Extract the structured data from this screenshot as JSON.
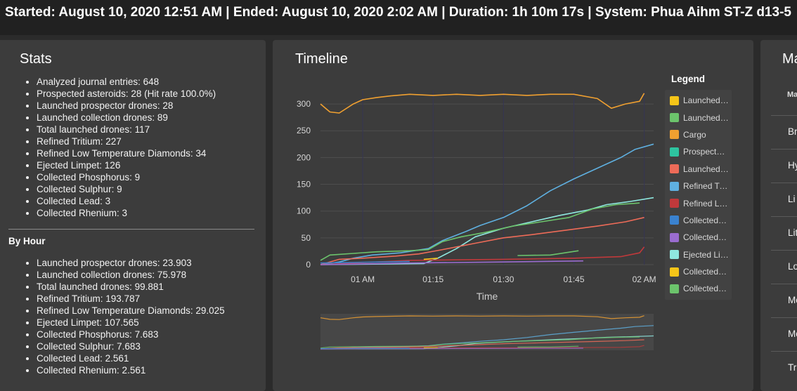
{
  "header": {
    "summary": "Started: August 10, 2020 12:51 AM | Ended: August 10, 2020 2:02 AM | Duration: 1h 10m 17s | System: Phua Aihm ST-Z d13-5"
  },
  "stats": {
    "title": "Stats",
    "items": [
      "Analyzed journal entries: 648",
      "Prospected asteroids: 28 (Hit rate 100.0%)",
      "Launched prospector drones: 28",
      "Launched collection drones: 89",
      "Total launched drones: 117",
      "Refined Tritium: 227",
      "Refined Low Temperature Diamonds: 34",
      "Ejected Limpet: 126",
      "Collected Phosphorus: 9",
      "Collected Sulphur: 9",
      "Collected Lead: 3",
      "Collected Rhenium: 3"
    ],
    "by_hour_title": "By Hour",
    "by_hour_items": [
      "Launched prospector drones: 23.903",
      "Launched collection drones: 75.978",
      "Total launched drones: 99.881",
      "Refined Tritium: 193.787",
      "Refined Low Temperature Diamonds: 29.025",
      "Ejected Limpet: 107.565",
      "Collected Phosphorus: 7.683",
      "Collected Sulphur: 7.683",
      "Collected Lead: 2.561",
      "Collected Rhenium: 2.561"
    ]
  },
  "timeline": {
    "title": "Timeline",
    "legend_title": "Legend",
    "legend": [
      {
        "label": "Launched…",
        "color": "#f5c518"
      },
      {
        "label": "Launched…",
        "color": "#6cc46c"
      },
      {
        "label": "Cargo",
        "color": "#f0a030"
      },
      {
        "label": "Prospect…",
        "color": "#2ec4a0"
      },
      {
        "label": "Launched…",
        "color": "#ee6b58"
      },
      {
        "label": "Refined Tr…",
        "color": "#5fb0e0"
      },
      {
        "label": "Refined L…",
        "color": "#c0393b"
      },
      {
        "label": "Collected…",
        "color": "#3a82d0"
      },
      {
        "label": "Collected…",
        "color": "#9a6cd0"
      },
      {
        "label": "Ejected Li…",
        "color": "#8fe8e0"
      },
      {
        "label": "Collected…",
        "color": "#f5c518"
      },
      {
        "label": "Collected…",
        "color": "#6cc46c"
      }
    ]
  },
  "chart_data": {
    "type": "line",
    "xlabel": "Time",
    "ylabel": "",
    "xlim": [
      "00:51",
      "02:02"
    ],
    "ylim": [
      0,
      325
    ],
    "yticks": [
      0,
      50,
      100,
      150,
      200,
      250,
      300
    ],
    "xticks": [
      {
        "t": "01:00",
        "label": "01 AM"
      },
      {
        "t": "01:15",
        "label": "01:15"
      },
      {
        "t": "01:30",
        "label": "01:30"
      },
      {
        "t": "01:45",
        "label": "01:45"
      },
      {
        "t": "02:00",
        "label": "02 AM"
      }
    ],
    "grid": true,
    "legend_position": "right",
    "series": [
      {
        "color": "#f0a030",
        "points": [
          [
            "00:51",
            300
          ],
          [
            "00:53",
            285
          ],
          [
            "00:55",
            283
          ],
          [
            "00:58",
            300
          ],
          [
            "01:00",
            308
          ],
          [
            "01:03",
            312
          ],
          [
            "01:06",
            315
          ],
          [
            "01:10",
            318
          ],
          [
            "01:15",
            316
          ],
          [
            "01:20",
            318
          ],
          [
            "01:25",
            316
          ],
          [
            "01:30",
            318
          ],
          [
            "01:35",
            316
          ],
          [
            "01:40",
            318
          ],
          [
            "01:45",
            318
          ],
          [
            "01:50",
            310
          ],
          [
            "01:53",
            292
          ],
          [
            "01:56",
            300
          ],
          [
            "01:59",
            305
          ],
          [
            "02:00",
            320
          ]
        ]
      },
      {
        "color": "#5fb0e0",
        "points": [
          [
            "00:51",
            0
          ],
          [
            "00:55",
            5
          ],
          [
            "00:58",
            12
          ],
          [
            "01:02",
            18
          ],
          [
            "01:08",
            22
          ],
          [
            "01:14",
            30
          ],
          [
            "01:17",
            45
          ],
          [
            "01:22",
            62
          ],
          [
            "01:25",
            73
          ],
          [
            "01:30",
            88
          ],
          [
            "01:35",
            110
          ],
          [
            "01:40",
            138
          ],
          [
            "01:45",
            160
          ],
          [
            "01:50",
            180
          ],
          [
            "01:55",
            200
          ],
          [
            "01:58",
            215
          ],
          [
            "02:02",
            225
          ]
        ]
      },
      {
        "color": "#8fe8e0",
        "points": [
          [
            "00:51",
            0
          ],
          [
            "01:13",
            2
          ],
          [
            "01:16",
            12
          ],
          [
            "01:20",
            30
          ],
          [
            "01:24",
            52
          ],
          [
            "01:30",
            68
          ],
          [
            "01:36",
            80
          ],
          [
            "01:42",
            92
          ],
          [
            "01:48",
            102
          ],
          [
            "01:52",
            112
          ],
          [
            "01:57",
            118
          ],
          [
            "02:02",
            125
          ]
        ]
      },
      {
        "color": "#6cc46c",
        "points": [
          [
            "00:51",
            8
          ],
          [
            "00:53",
            18
          ],
          [
            "00:58",
            21
          ],
          [
            "01:03",
            24
          ],
          [
            "01:10",
            26
          ],
          [
            "01:14",
            28
          ],
          [
            "01:17",
            43
          ],
          [
            "01:21",
            52
          ],
          [
            "01:26",
            60
          ],
          [
            "01:32",
            72
          ],
          [
            "01:38",
            80
          ],
          [
            "01:44",
            88
          ],
          [
            "01:49",
            104
          ],
          [
            "01:54",
            112
          ],
          [
            "01:59",
            115
          ]
        ]
      },
      {
        "color": "#ee6b58",
        "points": [
          [
            "00:51",
            0
          ],
          [
            "00:55",
            10
          ],
          [
            "01:00",
            12
          ],
          [
            "01:07",
            16
          ],
          [
            "01:12",
            20
          ],
          [
            "01:17",
            28
          ],
          [
            "01:24",
            40
          ],
          [
            "01:30",
            50
          ],
          [
            "01:36",
            56
          ],
          [
            "01:43",
            64
          ],
          [
            "01:50",
            72
          ],
          [
            "01:56",
            80
          ],
          [
            "02:00",
            88
          ]
        ]
      },
      {
        "color": "#c0393b",
        "points": [
          [
            "00:51",
            0
          ],
          [
            "01:10",
            8
          ],
          [
            "01:30",
            10
          ],
          [
            "01:45",
            12
          ],
          [
            "01:55",
            15
          ],
          [
            "01:59",
            22
          ],
          [
            "02:00",
            33
          ]
        ]
      },
      {
        "color": "#9a6cd0",
        "points": [
          [
            "00:51",
            0
          ],
          [
            "01:10",
            3
          ],
          [
            "01:30",
            5
          ],
          [
            "01:47",
            7
          ]
        ]
      },
      {
        "color": "#3a82d0",
        "points": [
          [
            "00:51",
            3
          ],
          [
            "01:10",
            6
          ]
        ]
      },
      {
        "color": "#6cc46c",
        "points": [
          [
            "01:33",
            17
          ],
          [
            "01:40",
            18
          ],
          [
            "01:46",
            26
          ]
        ]
      },
      {
        "color": "#f5c518",
        "points": [
          [
            "01:13",
            10
          ],
          [
            "01:16",
            12
          ]
        ]
      }
    ]
  },
  "materials": {
    "title": "Ma",
    "header": "Ma",
    "rows": [
      "Br",
      "Hy",
      "Li",
      "Lit",
      "Lo",
      "Mc",
      "Mc",
      "Tr"
    ]
  }
}
